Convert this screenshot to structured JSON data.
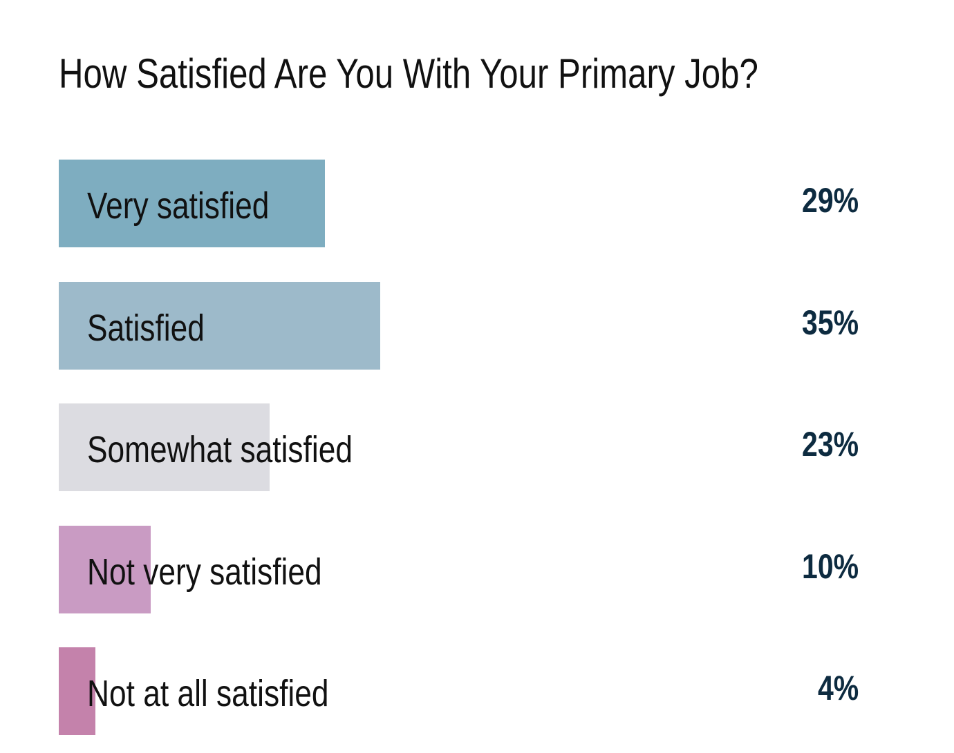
{
  "chart_data": {
    "type": "bar",
    "orientation": "horizontal",
    "title": "How Satisfied Are You With Your Primary Job?",
    "categories": [
      "Very satisfied",
      "Satisfied",
      "Somewhat satisfied",
      "Not very satisfied",
      "Not at all satisfied"
    ],
    "values": [
      29,
      35,
      23,
      10,
      4
    ],
    "value_labels": [
      "29%",
      "35%",
      "23%",
      "10%",
      "4%"
    ],
    "colors": [
      "#7eadc0",
      "#9dbaca",
      "#dcdce1",
      "#c99bc3",
      "#c482ab"
    ],
    "value_color": "#0d2b40",
    "xlim": [
      0,
      100
    ],
    "grid": false
  }
}
